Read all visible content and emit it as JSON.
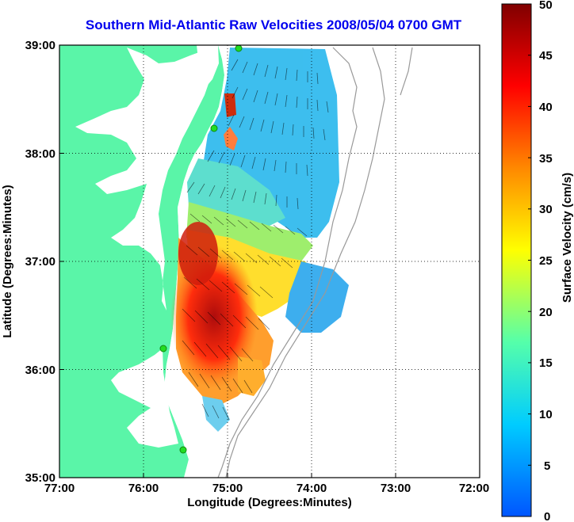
{
  "title": "Southern Mid-Atlantic Raw Velocities 2008/05/04 0700 GMT",
  "x_axis": {
    "label": "Longitude (Degrees:Minutes)",
    "ticks": [
      "77:00",
      "76:00",
      "75:00",
      "74:00",
      "73:00",
      "72:00"
    ]
  },
  "y_axis": {
    "label": "Latitude (Degrees:Minutes)",
    "ticks": [
      "39:00",
      "38:00",
      "37:00",
      "36:00",
      "35:00"
    ]
  },
  "colorbar": {
    "label": "Surface Velocity (cm/s)",
    "ticks": [
      "50",
      "45",
      "40",
      "35",
      "30",
      "25",
      "20",
      "15",
      "10",
      "5",
      "0"
    ],
    "range": [
      0,
      50
    ],
    "colors": [
      "#0055ff",
      "#00ccff",
      "#55ffaa",
      "#ffff00",
      "#ff8800",
      "#ff0000",
      "#800000"
    ]
  },
  "map": {
    "land_color": "#5af5a8",
    "water_color": "#ffffff",
    "lon_range": [
      -77,
      -72
    ],
    "lat_range": [
      35,
      39
    ],
    "grid": true,
    "radar_site_color": "#22dd22"
  }
}
